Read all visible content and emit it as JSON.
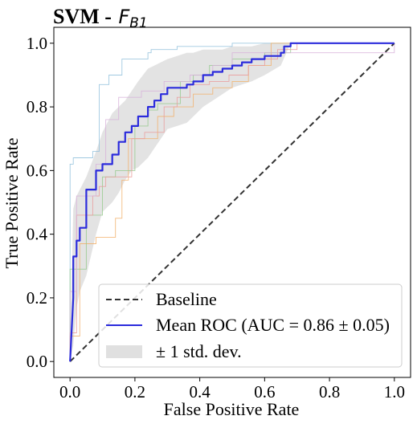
{
  "chart_data": {
    "type": "line",
    "title": "SVM - ",
    "title_symbol": "F",
    "title_subscript": "B1",
    "xlabel": "False Positive Rate",
    "ylabel": "True Positive Rate",
    "xlim": [
      -0.05,
      1.05
    ],
    "ylim": [
      -0.05,
      1.05
    ],
    "x_ticks": [
      0.0,
      0.2,
      0.4,
      0.6,
      0.8,
      1.0
    ],
    "x_tick_labels": [
      "0.0",
      "0.2",
      "0.4",
      "0.6",
      "0.8",
      "1.0"
    ],
    "y_ticks": [
      0.0,
      0.2,
      0.4,
      0.6,
      0.8,
      1.0
    ],
    "y_tick_labels": [
      "0.0",
      "0.2",
      "0.4",
      "0.6",
      "0.8",
      "1.0"
    ],
    "grid": false,
    "legend_position": "lower-right",
    "legend": [
      {
        "label": "Baseline",
        "style": "dashed",
        "color": "#333333"
      },
      {
        "label": "Mean ROC (AUC = 0.86 ± 0.05)",
        "style": "solid",
        "color": "#2b2bdc"
      },
      {
        "label": "± 1 std. dev.",
        "style": "band",
        "color": "#cccccc"
      }
    ],
    "baseline": {
      "x": [
        0,
        1
      ],
      "y": [
        0,
        1
      ]
    },
    "mean_roc": {
      "x": [
        0,
        0.01,
        0.01,
        0.02,
        0.02,
        0.03,
        0.03,
        0.05,
        0.05,
        0.08,
        0.08,
        0.1,
        0.1,
        0.13,
        0.13,
        0.15,
        0.15,
        0.17,
        0.17,
        0.19,
        0.19,
        0.21,
        0.21,
        0.24,
        0.24,
        0.26,
        0.26,
        0.28,
        0.28,
        0.3,
        0.3,
        0.33,
        0.33,
        0.36,
        0.36,
        0.38,
        0.38,
        0.41,
        0.41,
        0.44,
        0.44,
        0.47,
        0.47,
        0.5,
        0.5,
        0.53,
        0.53,
        0.56,
        0.56,
        0.6,
        0.6,
        0.65,
        0.65,
        0.66,
        0.66,
        0.68,
        0.68,
        1.0
      ],
      "y": [
        0,
        0.2,
        0.33,
        0.33,
        0.38,
        0.38,
        0.42,
        0.42,
        0.54,
        0.54,
        0.6,
        0.6,
        0.62,
        0.62,
        0.65,
        0.65,
        0.69,
        0.69,
        0.72,
        0.72,
        0.74,
        0.74,
        0.77,
        0.77,
        0.8,
        0.8,
        0.82,
        0.82,
        0.84,
        0.84,
        0.86,
        0.86,
        0.86,
        0.86,
        0.87,
        0.87,
        0.88,
        0.88,
        0.9,
        0.9,
        0.91,
        0.91,
        0.92,
        0.92,
        0.93,
        0.93,
        0.94,
        0.94,
        0.95,
        0.95,
        0.96,
        0.96,
        0.97,
        0.97,
        0.99,
        0.99,
        1.0,
        1.0
      ]
    },
    "std_band": {
      "x": [
        0,
        0.01,
        0.02,
        0.03,
        0.05,
        0.08,
        0.1,
        0.13,
        0.15,
        0.17,
        0.19,
        0.21,
        0.24,
        0.26,
        0.28,
        0.3,
        0.33,
        0.36,
        0.38,
        0.41,
        0.44,
        0.47,
        0.5,
        0.53,
        0.56,
        0.6,
        0.65,
        0.68,
        1.0
      ],
      "upper": [
        0.05,
        0.48,
        0.52,
        0.54,
        0.58,
        0.66,
        0.72,
        0.78,
        0.8,
        0.82,
        0.85,
        0.88,
        0.92,
        0.93,
        0.94,
        0.95,
        0.96,
        0.97,
        0.97,
        0.98,
        0.98,
        0.98,
        0.99,
        0.99,
        0.99,
        1.0,
        1.0,
        1.0,
        1.0
      ],
      "lower": [
        0.0,
        0.05,
        0.17,
        0.22,
        0.27,
        0.4,
        0.47,
        0.5,
        0.53,
        0.57,
        0.6,
        0.61,
        0.64,
        0.67,
        0.7,
        0.73,
        0.74,
        0.75,
        0.77,
        0.8,
        0.82,
        0.84,
        0.86,
        0.87,
        0.88,
        0.9,
        0.93,
        1.0,
        1.0
      ]
    },
    "fold_curves": [
      {
        "color": "#8fbfdc",
        "x": [
          0,
          0,
          0.01,
          0.01,
          0.07,
          0.07,
          0.09,
          0.09,
          0.12,
          0.12,
          0.16,
          0.16,
          0.24,
          0.24,
          0.25,
          0.25,
          0.33,
          0.33,
          0.45,
          0.45,
          0.5,
          0.5,
          0.66,
          0.66,
          1.0
        ],
        "y": [
          0,
          0.62,
          0.62,
          0.64,
          0.64,
          0.66,
          0.66,
          0.87,
          0.87,
          0.9,
          0.9,
          0.95,
          0.95,
          0.97,
          0.97,
          0.98,
          0.98,
          0.99,
          0.99,
          0.99,
          0.99,
          1.0,
          1.0,
          1.0,
          1.0
        ]
      },
      {
        "color": "#f2b06a",
        "x": [
          0,
          0,
          0.03,
          0.03,
          0.08,
          0.08,
          0.14,
          0.14,
          0.16,
          0.16,
          0.18,
          0.18,
          0.27,
          0.27,
          0.32,
          0.32,
          0.38,
          0.38,
          0.44,
          0.44,
          0.5,
          0.5,
          0.55,
          0.55,
          0.62,
          0.62,
          1.0
        ],
        "y": [
          0,
          0.08,
          0.08,
          0.37,
          0.37,
          0.39,
          0.39,
          0.45,
          0.45,
          0.57,
          0.57,
          0.7,
          0.7,
          0.77,
          0.77,
          0.8,
          0.8,
          0.84,
          0.84,
          0.86,
          0.86,
          0.88,
          0.88,
          0.93,
          0.93,
          1.0,
          1.0
        ]
      },
      {
        "color": "#94c98c",
        "x": [
          0,
          0,
          0.05,
          0.05,
          0.1,
          0.1,
          0.14,
          0.14,
          0.2,
          0.2,
          0.24,
          0.24,
          0.27,
          0.27,
          0.34,
          0.34,
          0.38,
          0.38,
          0.43,
          0.43,
          0.5,
          0.5,
          0.6,
          0.6,
          0.68,
          0.68,
          1.0
        ],
        "y": [
          0,
          0.29,
          0.29,
          0.46,
          0.46,
          0.58,
          0.58,
          0.6,
          0.6,
          0.74,
          0.74,
          0.79,
          0.79,
          0.81,
          0.81,
          0.88,
          0.88,
          0.9,
          0.9,
          0.93,
          0.93,
          0.95,
          0.95,
          0.97,
          0.97,
          1.0,
          1.0
        ]
      },
      {
        "color": "#ea9a9a",
        "x": [
          0,
          0,
          0.02,
          0.02,
          0.04,
          0.04,
          0.07,
          0.07,
          0.09,
          0.09,
          0.11,
          0.11,
          0.19,
          0.19,
          0.23,
          0.23,
          0.29,
          0.29,
          0.33,
          0.33,
          0.37,
          0.37,
          0.43,
          0.43,
          0.49,
          0.49,
          0.55,
          0.55,
          0.6,
          0.6,
          0.64,
          0.64,
          0.7,
          0.7,
          1.0
        ],
        "y": [
          0,
          0.09,
          0.09,
          0.46,
          0.46,
          0.46,
          0.46,
          0.52,
          0.52,
          0.55,
          0.55,
          0.58,
          0.58,
          0.7,
          0.7,
          0.72,
          0.72,
          0.8,
          0.8,
          0.83,
          0.83,
          0.87,
          0.87,
          0.88,
          0.88,
          0.9,
          0.9,
          0.93,
          0.93,
          0.95,
          0.95,
          0.98,
          0.98,
          1.0,
          1.0
        ]
      },
      {
        "color": "#d7b0d9",
        "x": [
          0,
          0,
          0.02,
          0.02,
          0.08,
          0.08,
          0.11,
          0.11,
          0.15,
          0.15,
          0.22,
          0.22,
          0.29,
          0.29,
          0.37,
          0.37,
          0.44,
          0.44,
          0.5,
          0.5,
          0.66,
          0.66,
          1.0,
          1.0
        ],
        "y": [
          0,
          0.22,
          0.22,
          0.52,
          0.52,
          0.62,
          0.62,
          0.76,
          0.76,
          0.83,
          0.83,
          0.85,
          0.85,
          0.88,
          0.88,
          0.9,
          0.9,
          0.93,
          0.93,
          0.97,
          0.97,
          0.97,
          0.97,
          1.0
        ]
      }
    ]
  }
}
